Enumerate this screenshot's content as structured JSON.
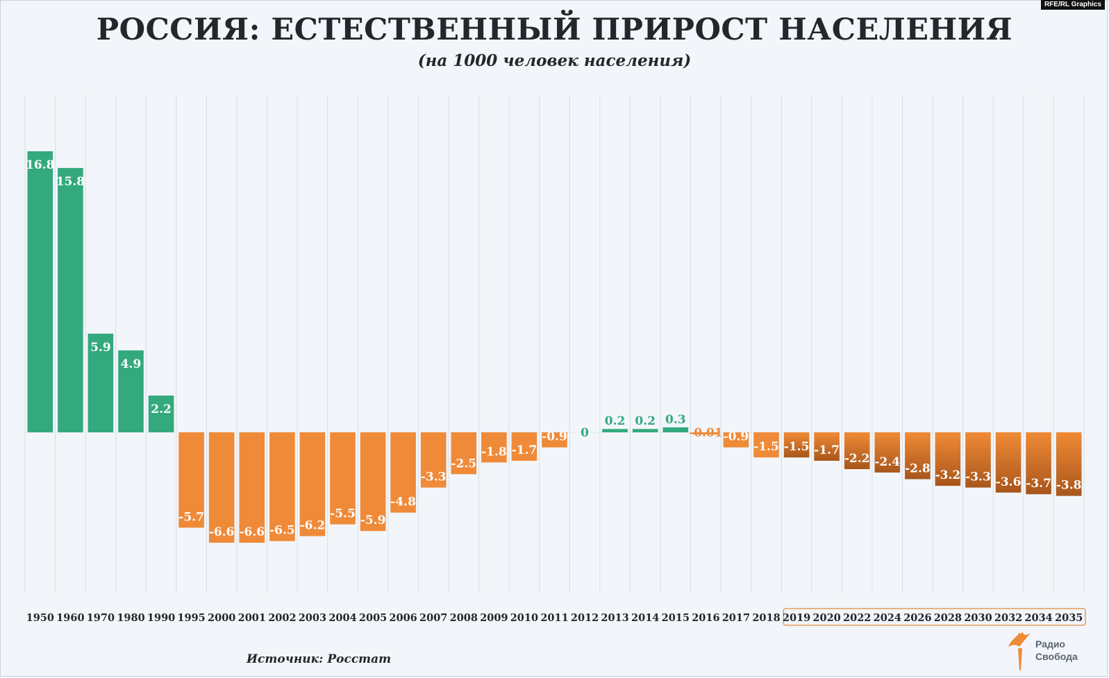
{
  "credit": "RFE/RL Graphics",
  "title": "РОССИЯ: ЕСТЕСТВЕННЫЙ ПРИРОСТ НАСЕЛЕНИЯ",
  "subtitle": "(на 1000 человек населения)",
  "source": "Источник: Росстат",
  "logo": {
    "icon": "torch-icon",
    "line1": "Радио",
    "line2": "Свобода"
  },
  "colors": {
    "positive": "#34a97e",
    "negative": "#ef8a38",
    "negative_forecast_top": "#f08a35",
    "negative_forecast_bottom": "#a8561c",
    "background": "#f2f6fa",
    "grid": "#d6dde3",
    "forecast_box": "#e59a5a"
  },
  "chart_data": {
    "type": "bar",
    "title": "РОССИЯ: ЕСТЕСТВЕННЫЙ ПРИРОСТ НАСЕЛЕНИЯ",
    "subtitle": "(на 1000 человек населения)",
    "categories": [
      "1950",
      "1960",
      "1970",
      "1980",
      "1990",
      "1995",
      "2000",
      "2001",
      "2002",
      "2003",
      "2004",
      "2005",
      "2006",
      "2007",
      "2008",
      "2009",
      "2010",
      "2011",
      "2012",
      "2013",
      "2014",
      "2015",
      "2016",
      "2017",
      "2018",
      "2019",
      "2020",
      "2022",
      "2024",
      "2026",
      "2028",
      "2030",
      "2032",
      "2034",
      "2035"
    ],
    "values": [
      16.8,
      15.8,
      5.9,
      4.9,
      2.2,
      -5.7,
      -6.6,
      -6.6,
      -6.5,
      -6.2,
      -5.5,
      -5.9,
      -4.8,
      -3.3,
      -2.5,
      -1.8,
      -1.7,
      -0.9,
      0,
      0.2,
      0.2,
      0.3,
      -0.01,
      -0.9,
      -1.5,
      -1.5,
      -1.7,
      -2.2,
      -2.4,
      -2.8,
      -3.2,
      -3.3,
      -3.6,
      -3.7,
      -3.8
    ],
    "labels": [
      "16.8",
      "15.8",
      "5.9",
      "4.9",
      "2.2",
      "-5.7",
      "-6.6",
      "-6.6",
      "-6.5",
      "-6.2",
      "-5.5",
      "-5.9",
      "-4.8",
      "-3.3",
      "-2.5",
      "-1.8",
      "-1.7",
      "-0.9",
      "0",
      "0.2",
      "0.2",
      "0.3",
      "-0.01",
      "-0.9",
      "-1.5",
      "-1.5",
      "-1.7",
      "-2.2",
      "-2.4",
      "-2.8",
      "-3.2",
      "-3.3",
      "-3.6",
      "-3.7",
      "-3.8"
    ],
    "forecast_from": "2019",
    "ylim": [
      -10,
      20.1
    ],
    "grid": "vertical",
    "xlabel": "",
    "ylabel": ""
  }
}
